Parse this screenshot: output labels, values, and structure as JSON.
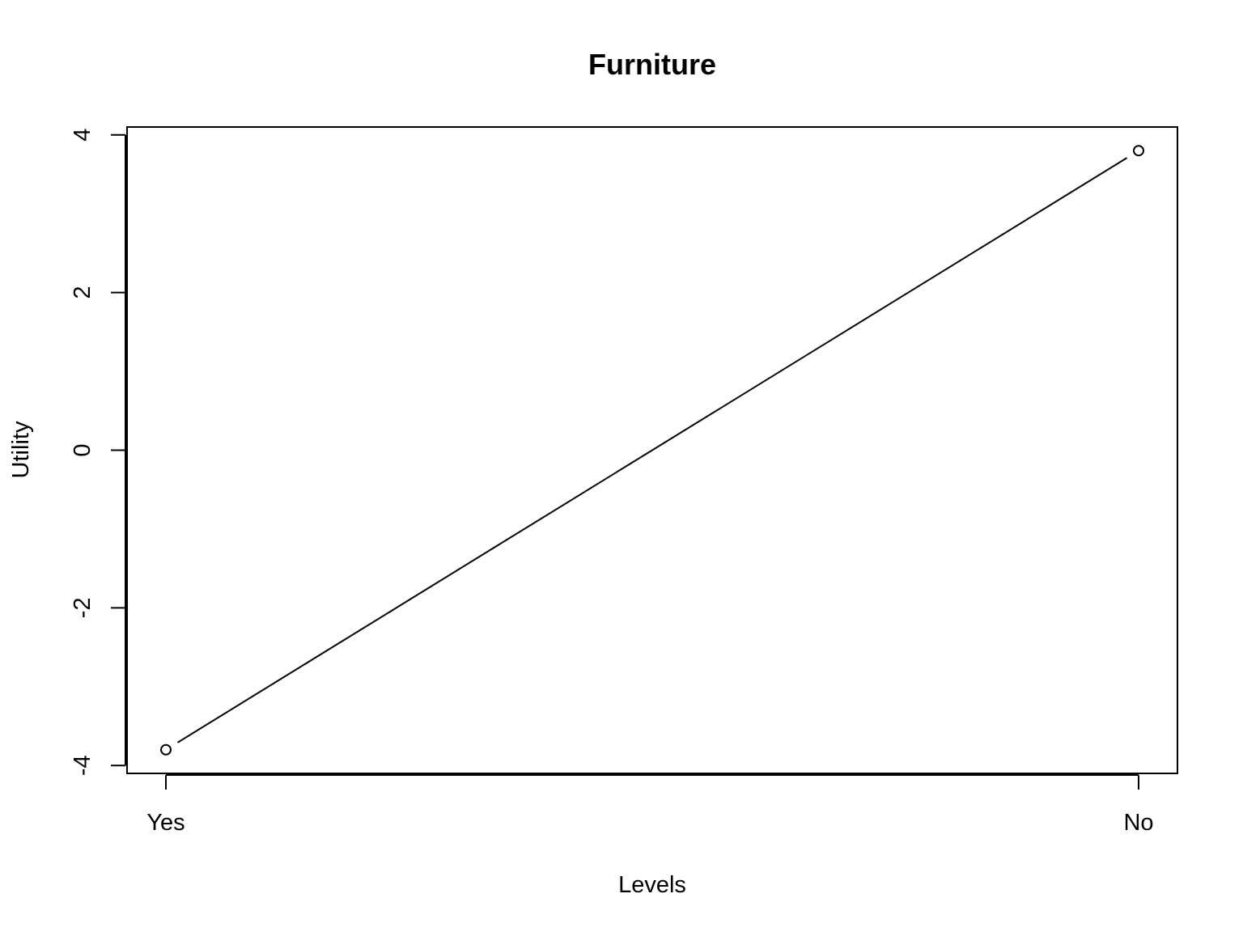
{
  "chart_data": {
    "type": "line",
    "title": "Furniture",
    "xlabel": "Levels",
    "ylabel": "Utility",
    "categories": [
      "Yes",
      "No"
    ],
    "series": [
      {
        "values": [
          -3.8,
          3.8
        ]
      }
    ],
    "ylim": [
      -4.1,
      4.1
    ],
    "yticks": [
      -4,
      -2,
      0,
      2,
      4
    ],
    "ytick_labels": [
      "-4",
      "-2",
      "0",
      "2",
      "4"
    ],
    "grid": false,
    "legend": "none",
    "marker": "open-circle",
    "colors": {
      "line": "#000000",
      "axis": "#000000",
      "background": "#ffffff"
    }
  }
}
